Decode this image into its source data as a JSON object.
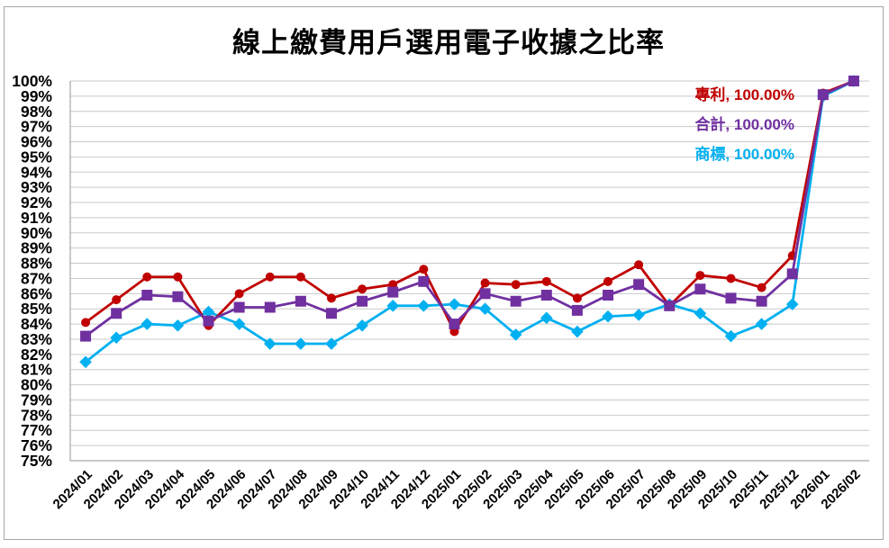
{
  "chart_data": {
    "type": "line",
    "title": "線上繳費用戶選用電子收據之比率",
    "xlabel": "",
    "ylabel": "",
    "ylim": [
      75,
      100
    ],
    "ytick_step": 1,
    "ytick_format": "percent",
    "grid": true,
    "legend_position": "none",
    "yticks": [
      "100%",
      "99%",
      "98%",
      "97%",
      "96%",
      "95%",
      "94%",
      "93%",
      "92%",
      "91%",
      "90%",
      "89%",
      "88%",
      "87%",
      "86%",
      "85%",
      "84%",
      "83%",
      "82%",
      "81%",
      "80%",
      "79%",
      "78%",
      "77%",
      "76%",
      "75%"
    ],
    "categories": [
      "2024/01",
      "2024/02",
      "2024/03",
      "2024/04",
      "2024/05",
      "2024/06",
      "2024/07",
      "2024/08",
      "2024/09",
      "2024/10",
      "2024/11",
      "2024/12",
      "2025/01",
      "2025/02",
      "2025/03",
      "2025/04",
      "2025/05",
      "2025/06",
      "2025/07",
      "2025/08",
      "2025/09",
      "2025/10",
      "2025/11",
      "2025/12",
      "2026/01",
      "2026/02"
    ],
    "series": [
      {
        "name": "專利",
        "color": "#C00000",
        "marker": "circle",
        "end_label": "專利, 100.00%",
        "values": [
          84.1,
          85.6,
          87.1,
          87.1,
          83.9,
          86.0,
          87.1,
          87.1,
          85.7,
          86.3,
          86.6,
          87.6,
          83.5,
          86.7,
          86.6,
          86.8,
          85.7,
          86.8,
          87.9,
          85.2,
          87.2,
          87.0,
          86.4,
          88.5,
          99.2,
          100.0
        ]
      },
      {
        "name": "合計",
        "color": "#7030A0",
        "marker": "square",
        "end_label": "合計, 100.00%",
        "values": [
          83.2,
          84.7,
          85.9,
          85.8,
          84.2,
          85.1,
          85.1,
          85.5,
          84.7,
          85.5,
          86.1,
          86.8,
          84.0,
          86.0,
          85.5,
          85.9,
          84.9,
          85.9,
          86.6,
          85.2,
          86.3,
          85.7,
          85.5,
          87.3,
          99.1,
          100.0
        ]
      },
      {
        "name": "商標",
        "color": "#00B0F0",
        "marker": "diamond",
        "end_label": "商標, 100.00%",
        "values": [
          81.5,
          83.1,
          84.0,
          83.9,
          84.8,
          84.0,
          82.7,
          82.7,
          82.7,
          83.9,
          85.2,
          85.2,
          85.3,
          85.0,
          83.3,
          84.4,
          83.5,
          84.5,
          84.6,
          85.3,
          84.7,
          83.2,
          84.0,
          85.3,
          99.0,
          100.0
        ]
      }
    ]
  },
  "colors": {
    "grid": "#c9c9c9",
    "axis": "#a6a6a6",
    "chart_border": "#a6a6a6",
    "tick_text": "#000000",
    "title_text": "#000000",
    "series_patent": "#C00000",
    "series_total": "#7030A0",
    "series_trademark": "#00B0F0"
  }
}
